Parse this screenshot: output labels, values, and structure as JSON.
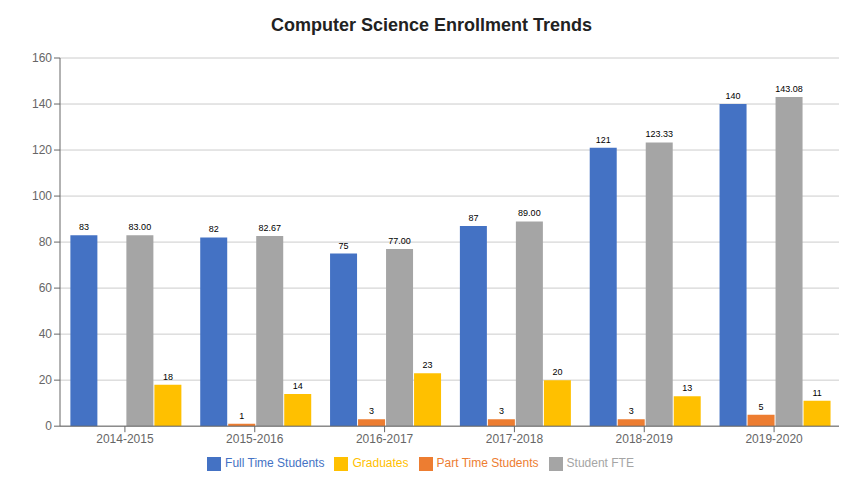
{
  "chart_data": {
    "type": "bar",
    "title": "Computer Science Enrollment Trends",
    "categories": [
      "2014-2015",
      "2015-2016",
      "2016-2017",
      "2017-2018",
      "2018-2019",
      "2019-2020"
    ],
    "series": [
      {
        "name": "Full Time Students",
        "color": "#4472C4",
        "values": [
          83,
          82,
          75,
          87,
          121,
          140
        ]
      },
      {
        "name": "Part Time Students",
        "color": "#ED7D31",
        "values": [
          0,
          1,
          3,
          3,
          3,
          5
        ]
      },
      {
        "name": "Student FTE",
        "color": "#A5A5A5",
        "values": [
          83.0,
          82.67,
          77.0,
          89.0,
          123.33,
          143.08
        ],
        "value_labels": [
          "83.00",
          "82.67",
          "77.00",
          "89.00",
          "123.33",
          "143.08"
        ]
      },
      {
        "name": "Graduates",
        "color": "#FFC000",
        "values": [
          18,
          14,
          23,
          20,
          13,
          11
        ]
      }
    ],
    "ylim": [
      0,
      160
    ],
    "yticks": [
      0,
      20,
      40,
      60,
      80,
      100,
      120,
      140,
      160
    ],
    "grid": true,
    "legend": "bottom",
    "data_labels": true
  }
}
